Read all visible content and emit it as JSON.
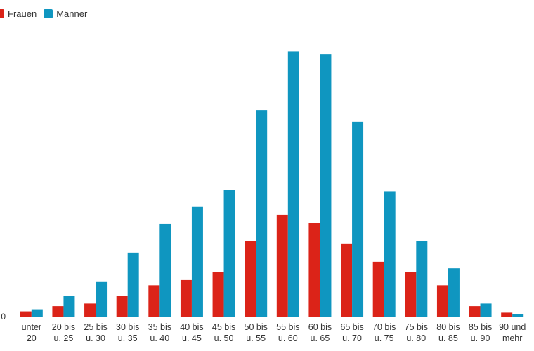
{
  "chart_data": {
    "type": "bar",
    "categories": [
      "unter 20",
      "20 bis u. 25",
      "25 bis u. 30",
      "30 bis u. 35",
      "35 bis u. 40",
      "40 bis u. 45",
      "45 bis u. 50",
      "50 bis u. 55",
      "55 bis u. 60",
      "60 bis u. 65",
      "65 bis u. 70",
      "70 bis u. 75",
      "75 bis u. 80",
      "80 bis u. 85",
      "85 bis u. 90",
      "90 und mehr"
    ],
    "category_lines": [
      [
        "unter",
        "20"
      ],
      [
        "20 bis",
        "u. 25"
      ],
      [
        "25 bis",
        "u. 30"
      ],
      [
        "30 bis",
        "u. 35"
      ],
      [
        "35 bis",
        "u. 40"
      ],
      [
        "40 bis",
        "u. 45"
      ],
      [
        "45 bis",
        "u. 50"
      ],
      [
        "50 bis",
        "u. 55"
      ],
      [
        "55 bis",
        "u. 60"
      ],
      [
        "60 bis",
        "u. 65"
      ],
      [
        "65 bis",
        "u. 70"
      ],
      [
        "70 bis",
        "u. 75"
      ],
      [
        "75 bis",
        "u. 80"
      ],
      [
        "80 bis",
        "u. 85"
      ],
      [
        "85 bis",
        "u. 90"
      ],
      [
        "90 und",
        "mehr"
      ]
    ],
    "series": [
      {
        "name": "Frauen",
        "color": "#db2318",
        "values": [
          2,
          4,
          5,
          8,
          12,
          14,
          17,
          29,
          39,
          36,
          28,
          21,
          17,
          12,
          4,
          1.5
        ]
      },
      {
        "name": "Männer",
        "color": "#0f96c0",
        "values": [
          2.8,
          8,
          13.5,
          24.5,
          35.5,
          42,
          48.5,
          79,
          101.5,
          100.5,
          74.5,
          48,
          29,
          18.5,
          5,
          1
        ]
      }
    ],
    "y_tick_labels": [
      {
        "value": 0,
        "label": "0"
      }
    ],
    "ylim": [
      0,
      110
    ],
    "grid": false,
    "legend_position": "top-left",
    "title": "",
    "xlabel": "",
    "ylabel": ""
  }
}
